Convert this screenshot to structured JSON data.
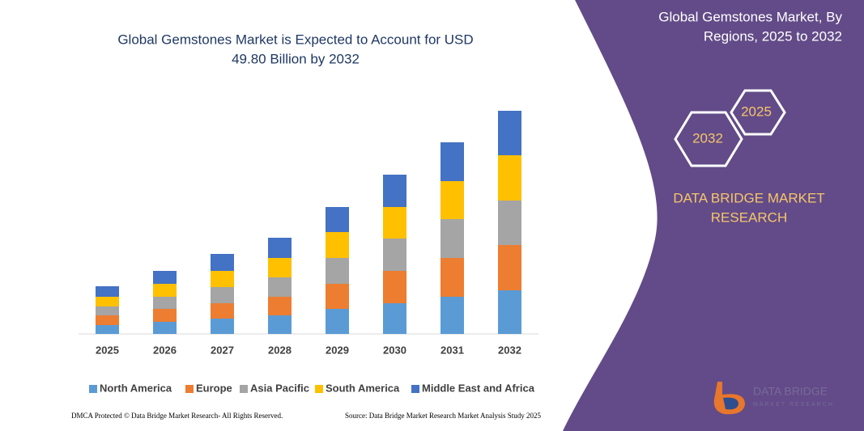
{
  "chart_data": {
    "type": "stacked-bar",
    "title_lines": [
      "Global Gemstones Market is Expected to Account for USD",
      "49.80 Billion by 2032"
    ],
    "categories": [
      "2025",
      "2026",
      "2027",
      "2028",
      "2029",
      "2030",
      "2031",
      "2032"
    ],
    "series": [
      {
        "name": "North America",
        "color": "#5b9bd5",
        "values": [
          11,
          15,
          19,
          23,
          31,
          38,
          46,
          54
        ]
      },
      {
        "name": "Europe",
        "color": "#ed7d31",
        "values": [
          12,
          16,
          19,
          23,
          31,
          40,
          48,
          56
        ]
      },
      {
        "name": "Asia Pacific",
        "color": "#a5a5a5",
        "values": [
          11,
          15,
          20,
          24,
          32,
          40,
          48,
          55
        ]
      },
      {
        "name": "South America",
        "color": "#ffc000",
        "values": [
          12,
          16,
          20,
          24,
          32,
          39,
          47,
          56
        ]
      },
      {
        "name": "Middle East and Africa",
        "color": "#4472c4",
        "values": [
          13,
          16,
          21,
          25,
          31,
          40,
          48,
          55
        ]
      }
    ],
    "ylim": [
      0,
      280
    ]
  },
  "panel": {
    "title_lines": [
      "Global Gemstones Market, By",
      "Regions, 2025 to 2032"
    ],
    "hex_back": "2025",
    "hex_front": "2032",
    "brand_lines": [
      "DATA BRIDGE MARKET",
      "RESEARCH"
    ],
    "logo_top": "DATA BRIDGE",
    "logo_bottom": "MARKET RESEARCH"
  },
  "footer": {
    "left": "DMCA Protected © Data Bridge Market Research- All Rights Reserved.",
    "right": "Source: Data Bridge Market Research Market Analysis Study 2025"
  }
}
